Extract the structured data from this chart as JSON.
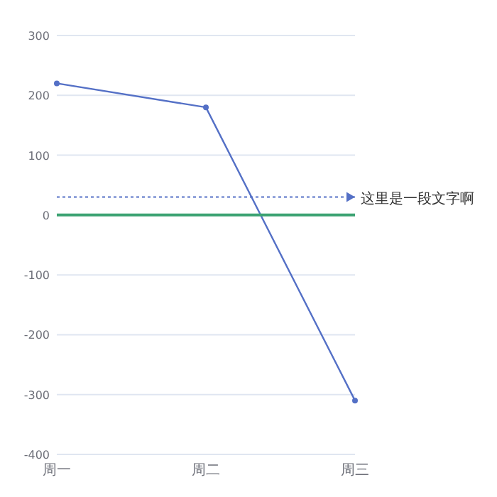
{
  "chart_data": {
    "type": "line",
    "categories": [
      "周一",
      "周二",
      "周三"
    ],
    "series": [
      {
        "color": "#5470c6",
        "values": [
          220,
          180,
          -310
        ],
        "marker": "circle"
      },
      {
        "color": "#3ba272",
        "values": [
          0,
          0,
          0
        ],
        "marker": "none"
      }
    ],
    "ylim": [
      -400,
      300
    ],
    "yticks": [
      -400,
      -300,
      -200,
      -100,
      0,
      100,
      200,
      300
    ],
    "grid": "y",
    "ref_lines": [
      {
        "axis": "y",
        "value": 30,
        "label": "这里是一段文字啊",
        "color": "#5470c6",
        "line_style": "dotted"
      }
    ]
  }
}
